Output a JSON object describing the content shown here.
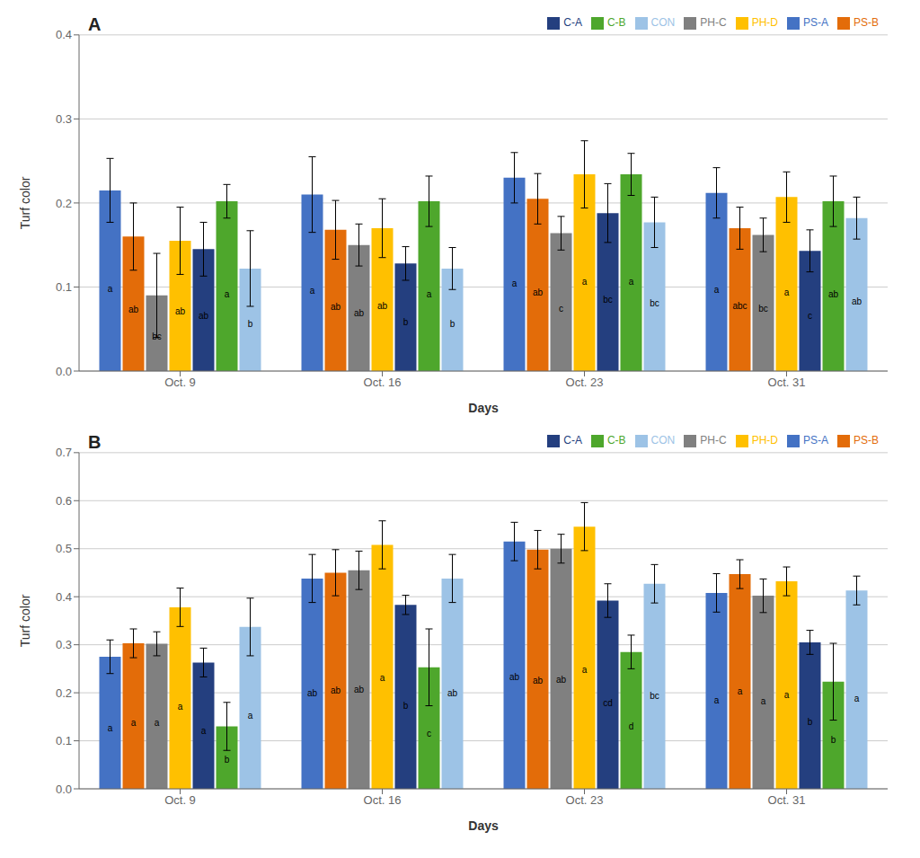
{
  "chart_data": [
    {
      "type": "bar",
      "title": "A",
      "xlabel": "Days",
      "ylabel": "Turf color",
      "categories": [
        "Oct. 9",
        "Oct. 16",
        "Oct. 23",
        "Oct. 31"
      ],
      "ylim": [
        0,
        0.4
      ],
      "yticks": [
        {
          "value": 0,
          "label": "0.0"
        },
        0.1,
        0.2,
        0.3,
        0.4
      ],
      "grid": true,
      "legend": "upper right",
      "series": [
        {
          "name": "PS-A",
          "color": "#4472C4",
          "values": [
            0.215,
            0.21,
            0.23,
            0.212
          ],
          "errors": [
            0.038,
            0.045,
            0.03,
            0.03
          ],
          "sig_labels": [
            "a",
            "a",
            "a",
            "a"
          ]
        },
        {
          "name": "PS-B",
          "color": "#E36C09",
          "values": [
            0.16,
            0.168,
            0.205,
            0.17
          ],
          "errors": [
            0.04,
            0.035,
            0.03,
            0.025
          ],
          "sig_labels": [
            "ab",
            "ab",
            "ab",
            "abc"
          ]
        },
        {
          "name": "PH-C",
          "color": "#808080",
          "values": [
            0.09,
            0.15,
            0.164,
            0.162
          ],
          "errors": [
            0.05,
            0.025,
            0.02,
            0.02
          ],
          "sig_labels": [
            "bc",
            "ab",
            "c",
            "bc"
          ]
        },
        {
          "name": "PH-D",
          "color": "#FFC000",
          "values": [
            0.155,
            0.17,
            0.234,
            0.207
          ],
          "errors": [
            0.04,
            0.035,
            0.04,
            0.03
          ],
          "sig_labels": [
            "ab",
            "ab",
            "a",
            "a"
          ]
        },
        {
          "name": "C-A",
          "color": "#243F7F",
          "values": [
            0.145,
            0.128,
            0.188,
            0.143
          ],
          "errors": [
            0.032,
            0.02,
            0.035,
            0.025
          ],
          "sig_labels": [
            "ab",
            "b",
            "bc",
            "c"
          ]
        },
        {
          "name": "C-B",
          "color": "#4EA72C",
          "values": [
            0.202,
            0.202,
            0.234,
            0.202
          ],
          "errors": [
            0.02,
            0.03,
            0.025,
            0.03
          ],
          "sig_labels": [
            "a",
            "a",
            "a",
            "ab"
          ]
        },
        {
          "name": "CON",
          "color": "#9DC3E6",
          "values": [
            0.122,
            0.122,
            0.177,
            0.182
          ],
          "errors": [
            0.045,
            0.025,
            0.03,
            0.025
          ],
          "sig_labels": [
            "b",
            "b",
            "bc",
            "ab"
          ]
        }
      ]
    },
    {
      "type": "bar",
      "title": "B",
      "xlabel": "Days",
      "ylabel": "Turf color",
      "categories": [
        "Oct. 9",
        "Oct. 16",
        "Oct. 23",
        "Oct. 31"
      ],
      "ylim": [
        0,
        0.7
      ],
      "yticks": [
        {
          "value": 0,
          "label": "0.0"
        },
        0.1,
        0.2,
        0.3,
        0.4,
        0.5,
        0.6,
        0.7
      ],
      "grid": true,
      "legend": "upper right",
      "series": [
        {
          "name": "PS-A",
          "color": "#4472C4",
          "values": [
            0.275,
            0.438,
            0.515,
            0.408
          ],
          "errors": [
            0.035,
            0.05,
            0.04,
            0.04
          ],
          "sig_labels": [
            "a",
            "ab",
            "ab",
            "a"
          ]
        },
        {
          "name": "PS-B",
          "color": "#E36C09",
          "values": [
            0.303,
            0.45,
            0.498,
            0.447
          ],
          "errors": [
            0.03,
            0.048,
            0.04,
            0.03
          ],
          "sig_labels": [
            "a",
            "ab",
            "ab",
            "a"
          ]
        },
        {
          "name": "PH-C",
          "color": "#808080",
          "values": [
            0.302,
            0.455,
            0.5,
            0.402
          ],
          "errors": [
            0.025,
            0.04,
            0.03,
            0.035
          ],
          "sig_labels": [
            "a",
            "ab",
            "ab",
            "a"
          ]
        },
        {
          "name": "PH-D",
          "color": "#FFC000",
          "values": [
            0.378,
            0.508,
            0.546,
            0.432
          ],
          "errors": [
            0.04,
            0.05,
            0.05,
            0.03
          ],
          "sig_labels": [
            "a",
            "a",
            "a",
            "a"
          ]
        },
        {
          "name": "C-A",
          "color": "#243F7F",
          "values": [
            0.263,
            0.383,
            0.392,
            0.305
          ],
          "errors": [
            0.03,
            0.02,
            0.035,
            0.025
          ],
          "sig_labels": [
            "a",
            "b",
            "cd",
            "b"
          ]
        },
        {
          "name": "C-B",
          "color": "#4EA72C",
          "values": [
            0.13,
            0.253,
            0.285,
            0.223
          ],
          "errors": [
            0.05,
            0.08,
            0.035,
            0.08
          ],
          "sig_labels": [
            "b",
            "c",
            "d",
            "b"
          ]
        },
        {
          "name": "CON",
          "color": "#9DC3E6",
          "values": [
            0.337,
            0.438,
            0.427,
            0.413
          ],
          "errors": [
            0.06,
            0.05,
            0.04,
            0.03
          ],
          "sig_labels": [
            "a",
            "ab",
            "bc",
            "a"
          ]
        }
      ]
    }
  ]
}
